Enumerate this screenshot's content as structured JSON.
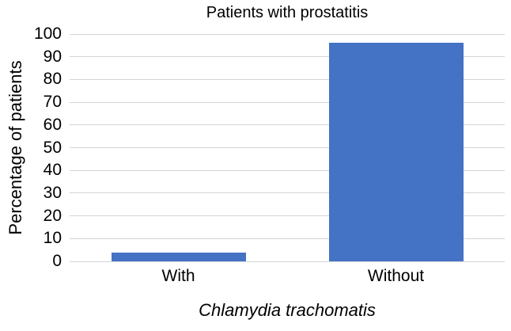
{
  "chart_data": {
    "type": "bar",
    "title": "Patients with prostatitis",
    "xlabel": "Chlamydia trachomatis",
    "ylabel": "Percentage of patients",
    "categories": [
      "With",
      "Without"
    ],
    "values": [
      4,
      96
    ],
    "ylim": [
      0,
      100
    ],
    "ytick_step": 10,
    "ytick_labels": [
      "0",
      "10",
      "20",
      "30",
      "40",
      "50",
      "60",
      "70",
      "80",
      "90",
      "100"
    ],
    "grid": true,
    "legend": false,
    "bar_color": "#4472C4",
    "gridline_color": "#D4D4D8",
    "text_color": "#000000",
    "background_color": "#FFFFFF"
  }
}
